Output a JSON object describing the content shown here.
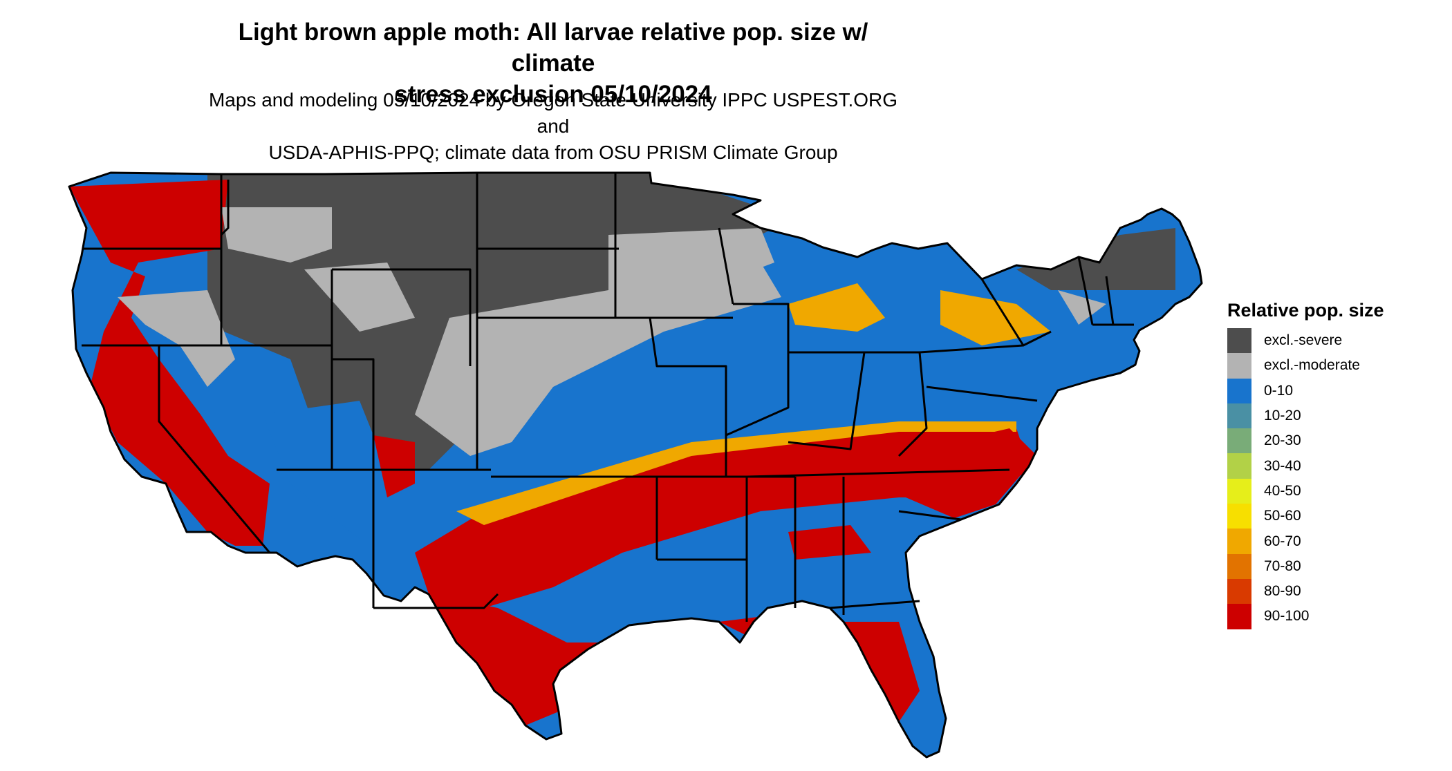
{
  "title": {
    "line1": "Light brown apple moth: All larvae relative pop. size w/ climate",
    "line2": "stress exclusion 05/10/2024"
  },
  "subtitle": {
    "line1": "Maps and modeling 05/10/2024 by Oregon State University IPPC USPEST.ORG and",
    "line2": "USDA-APHIS-PPQ; climate data from OSU PRISM Climate Group"
  },
  "legend": {
    "title": "Relative pop. size",
    "items": [
      {
        "label": "excl.-severe",
        "color": "#4d4d4d"
      },
      {
        "label": "excl.-moderate",
        "color": "#b3b3b3"
      },
      {
        "label": "0-10",
        "color": "#1874cd"
      },
      {
        "label": "10-20",
        "color": "#4a90a4"
      },
      {
        "label": "20-30",
        "color": "#79ac78"
      },
      {
        "label": "30-40",
        "color": "#b2d147"
      },
      {
        "label": "40-50",
        "color": "#e6ee1a"
      },
      {
        "label": "50-60",
        "color": "#f7df00"
      },
      {
        "label": "60-70",
        "color": "#f0a800"
      },
      {
        "label": "70-80",
        "color": "#e27300"
      },
      {
        "label": "80-90",
        "color": "#d93a00"
      },
      {
        "label": "90-100",
        "color": "#cd0000"
      }
    ]
  }
}
